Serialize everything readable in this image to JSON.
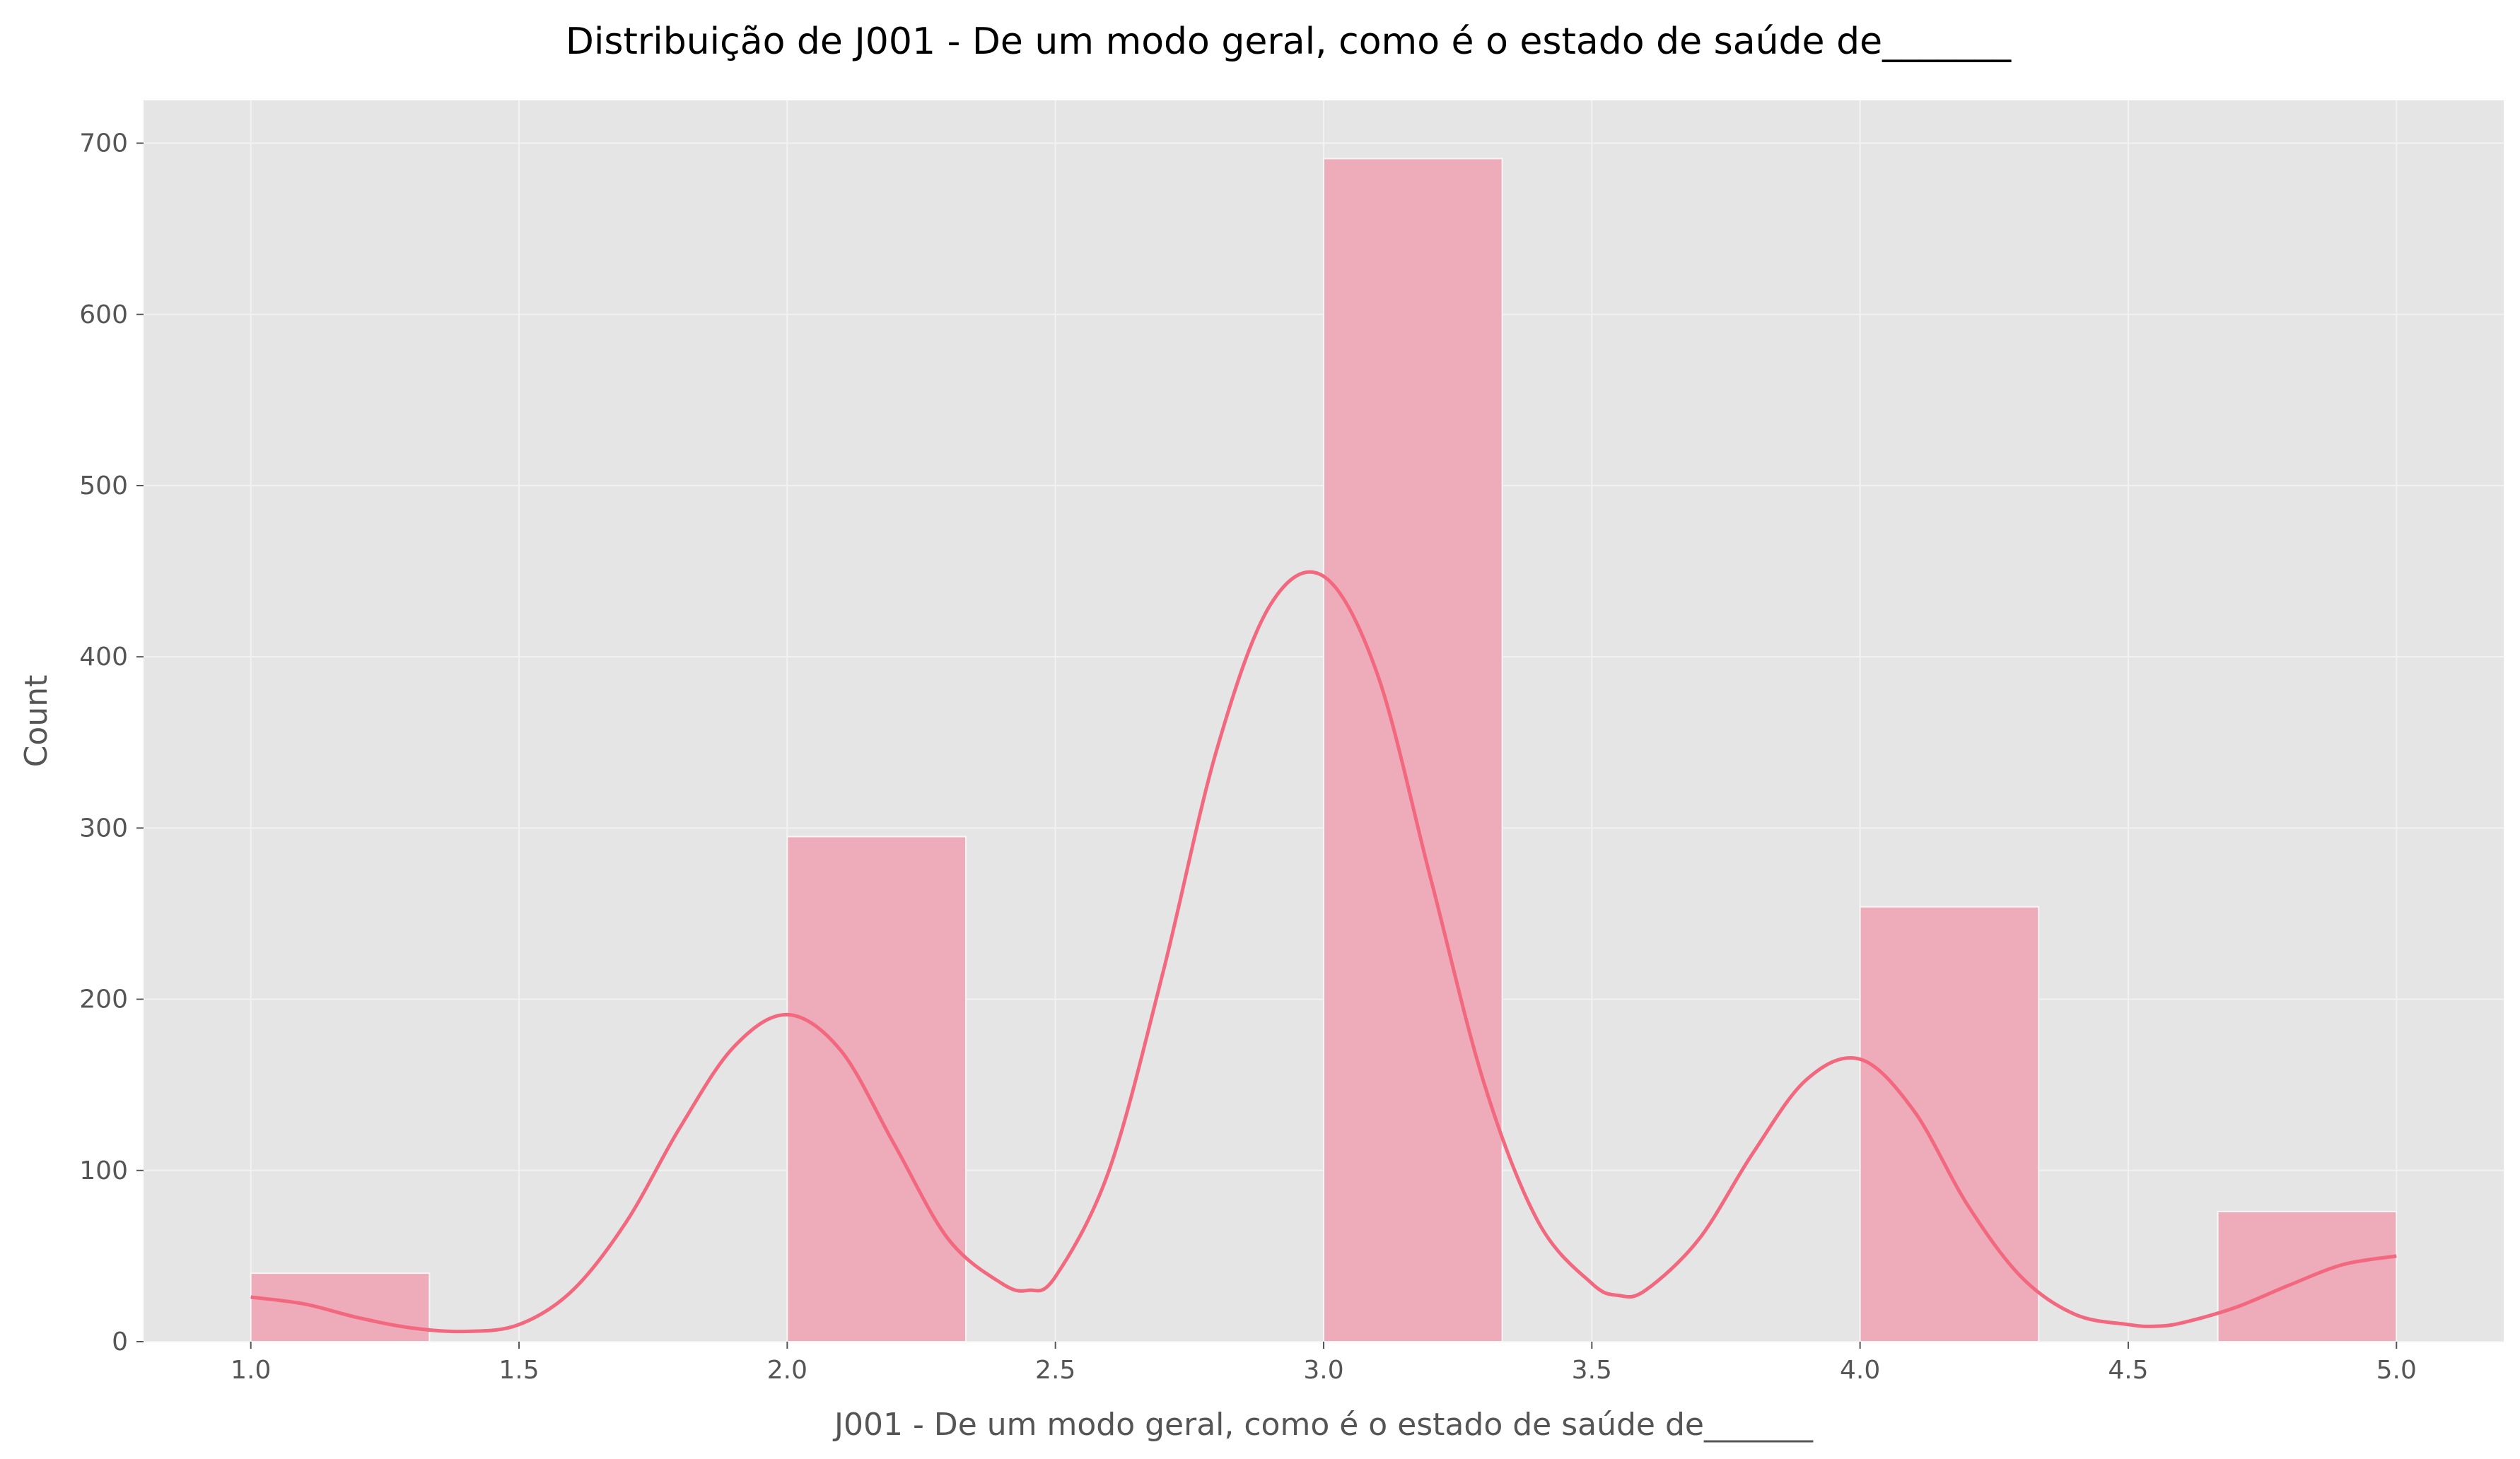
{
  "chart_data": {
    "type": "bar",
    "title": "Distribuição de J001 - De um modo geral, como é o estado de saúde de_______",
    "xlabel": "J001 - De um modo geral, como é o estado de saúde de_______",
    "ylabel": "Count",
    "xlim": [
      0.8,
      5.2
    ],
    "ylim": [
      0,
      725
    ],
    "x_ticks": [
      "1.0",
      "1.5",
      "2.0",
      "2.5",
      "3.0",
      "3.5",
      "4.0",
      "4.5",
      "5.0"
    ],
    "y_ticks": [
      "0",
      "100",
      "200",
      "300",
      "400",
      "500",
      "600",
      "700"
    ],
    "bins": [
      {
        "start": 1.0,
        "end": 1.333,
        "count": 40
      },
      {
        "start": 1.333,
        "end": 1.667,
        "count": 0
      },
      {
        "start": 1.667,
        "end": 2.0,
        "count": 0
      },
      {
        "start": 2.0,
        "end": 2.333,
        "count": 295
      },
      {
        "start": 2.333,
        "end": 2.667,
        "count": 0
      },
      {
        "start": 2.667,
        "end": 3.0,
        "count": 0
      },
      {
        "start": 3.0,
        "end": 3.333,
        "count": 691
      },
      {
        "start": 3.333,
        "end": 3.667,
        "count": 0
      },
      {
        "start": 3.667,
        "end": 4.0,
        "count": 0
      },
      {
        "start": 4.0,
        "end": 4.333,
        "count": 254
      },
      {
        "start": 4.333,
        "end": 4.667,
        "count": 0
      },
      {
        "start": 4.667,
        "end": 5.0,
        "count": 76
      }
    ],
    "kde": {
      "x": [
        1.0,
        1.1,
        1.2,
        1.3,
        1.4,
        1.5,
        1.6,
        1.7,
        1.8,
        1.9,
        2.0,
        2.1,
        2.2,
        2.3,
        2.4,
        2.45,
        2.5,
        2.6,
        2.7,
        2.8,
        2.9,
        3.0,
        3.1,
        3.2,
        3.3,
        3.4,
        3.5,
        3.55,
        3.6,
        3.7,
        3.8,
        3.9,
        4.0,
        4.1,
        4.2,
        4.3,
        4.4,
        4.5,
        4.55,
        4.6,
        4.7,
        4.8,
        4.9,
        5.0
      ],
      "y": [
        26,
        22,
        14,
        8,
        6,
        10,
        30,
        70,
        125,
        172,
        191,
        170,
        115,
        60,
        34,
        30,
        38,
        100,
        215,
        345,
        430,
        447,
        390,
        270,
        150,
        70,
        34,
        27,
        30,
        60,
        110,
        153,
        165,
        135,
        80,
        38,
        16,
        10,
        9,
        11,
        20,
        33,
        45,
        50
      ]
    },
    "grid": true,
    "colors": {
      "bar_fill": "#eeabb9",
      "bar_edge": "#f5f5f5",
      "kde_line": "#f2697f",
      "plot_background": "#e5e5e5",
      "grid": "#f2f2f2"
    }
  }
}
